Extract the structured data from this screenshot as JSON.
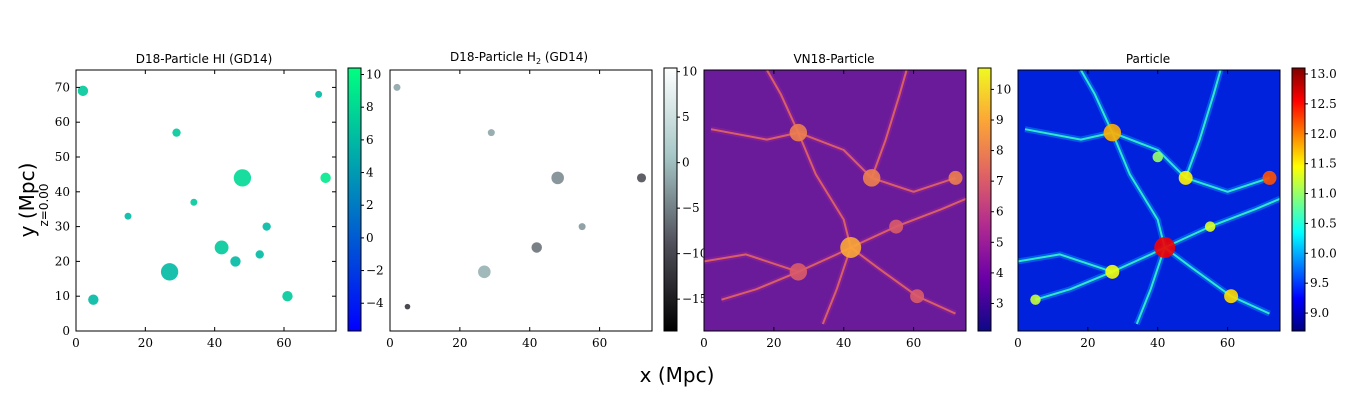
{
  "figure": {
    "xlabel": "x (Mpc)",
    "ylabel": "y (Mpc)",
    "redshift_label": "z=0.00"
  },
  "chart_data": [
    {
      "type": "heatmap",
      "title": "D18-Particle HI (GD14)",
      "title_sub": "",
      "xlim": [
        0,
        75
      ],
      "ylim": [
        0,
        75
      ],
      "xticks": [
        0,
        20,
        40,
        60
      ],
      "yticks": [
        0,
        10,
        20,
        30,
        40,
        50,
        60,
        70
      ],
      "colorbar": {
        "colormap": "winter",
        "range": [
          -5.7,
          10.4
        ],
        "ticks": [
          -4,
          -2,
          0,
          2,
          4,
          6,
          8,
          10
        ],
        "colors": [
          "#0000ff",
          "#0080c0",
          "#00ff80"
        ]
      },
      "background": "#ffffff",
      "features": [
        {
          "x": 48,
          "y": 44,
          "r": 2.5,
          "v": 8
        },
        {
          "x": 42,
          "y": 24,
          "r": 2,
          "v": 7
        },
        {
          "x": 72,
          "y": 44,
          "r": 1.5,
          "v": 9
        },
        {
          "x": 55,
          "y": 30,
          "r": 1.2,
          "v": 6
        },
        {
          "x": 29,
          "y": 57,
          "r": 1.2,
          "v": 7
        },
        {
          "x": 27,
          "y": 17,
          "r": 2.5,
          "v": 6
        },
        {
          "x": 61,
          "y": 10,
          "r": 1.5,
          "v": 7
        },
        {
          "x": 5,
          "y": 9,
          "r": 1.5,
          "v": 6
        },
        {
          "x": 2,
          "y": 69,
          "r": 1.5,
          "v": 7
        },
        {
          "x": 70,
          "y": 68,
          "r": 1,
          "v": 6
        },
        {
          "x": 15,
          "y": 33,
          "r": 1,
          "v": 6
        },
        {
          "x": 34,
          "y": 37,
          "r": 1,
          "v": 7
        },
        {
          "x": 46,
          "y": 20,
          "r": 1.5,
          "v": 6
        },
        {
          "x": 53,
          "y": 22,
          "r": 1.2,
          "v": 6
        }
      ]
    },
    {
      "type": "heatmap",
      "title": "D18-Particle H",
      "title_sub": "2",
      "title_suffix": " (GD14)",
      "xlim": [
        0,
        75
      ],
      "ylim": [
        0,
        75
      ],
      "xticks": [
        0,
        20,
        40,
        60
      ],
      "yticks": [],
      "colorbar": {
        "colormap": "bone",
        "range": [
          -18.5,
          10.4
        ],
        "ticks": [
          -15,
          -10,
          -5,
          0,
          5,
          10
        ],
        "colors": [
          "#000000",
          "#50505a",
          "#a7c7c7",
          "#ffffff"
        ]
      },
      "background": "#ffffff",
      "features": [
        {
          "x": 48,
          "y": 44,
          "r": 1.8,
          "v": -4
        },
        {
          "x": 42,
          "y": 24,
          "r": 1.5,
          "v": -6
        },
        {
          "x": 72,
          "y": 44,
          "r": 1.3,
          "v": -9
        },
        {
          "x": 55,
          "y": 30,
          "r": 1,
          "v": -3
        },
        {
          "x": 29,
          "y": 57,
          "r": 1,
          "v": -2
        },
        {
          "x": 27,
          "y": 17,
          "r": 1.8,
          "v": -1
        },
        {
          "x": 5,
          "y": 7,
          "r": 0.8,
          "v": -12
        },
        {
          "x": 2,
          "y": 70,
          "r": 1,
          "v": -2
        }
      ]
    },
    {
      "type": "heatmap",
      "title": "VN18-Particle",
      "title_sub": "",
      "xlim": [
        0,
        75
      ],
      "ylim": [
        0,
        75
      ],
      "xticks": [
        0,
        20,
        40,
        60
      ],
      "yticks": [],
      "colorbar": {
        "colormap": "plasma",
        "range": [
          2.1,
          10.7
        ],
        "ticks": [
          3,
          4,
          5,
          6,
          7,
          8,
          9,
          10
        ],
        "colors": [
          "#0d0887",
          "#6a00a8",
          "#b12a90",
          "#e16462",
          "#fca636",
          "#f0f921"
        ]
      },
      "background": "#6a1b9a",
      "features": [
        {
          "x": 42,
          "y": 24,
          "r": 3,
          "v": 9
        },
        {
          "x": 48,
          "y": 44,
          "r": 2.5,
          "v": 8
        },
        {
          "x": 27,
          "y": 57,
          "r": 2.5,
          "v": 8
        },
        {
          "x": 72,
          "y": 44,
          "r": 2,
          "v": 8
        },
        {
          "x": 27,
          "y": 17,
          "r": 2.5,
          "v": 7
        },
        {
          "x": 55,
          "y": 30,
          "r": 2,
          "v": 7
        },
        {
          "x": 61,
          "y": 10,
          "r": 2,
          "v": 7
        }
      ],
      "filaments": [
        [
          [
            2,
            58
          ],
          [
            18,
            55
          ],
          [
            27,
            57
          ],
          [
            40,
            52
          ],
          [
            48,
            44
          ],
          [
            60,
            40
          ],
          [
            72,
            44
          ]
        ],
        [
          [
            27,
            57
          ],
          [
            32,
            45
          ],
          [
            40,
            32
          ],
          [
            42,
            24
          ],
          [
            38,
            12
          ],
          [
            34,
            2
          ]
        ],
        [
          [
            0,
            20
          ],
          [
            12,
            22
          ],
          [
            27,
            17
          ],
          [
            38,
            22
          ],
          [
            42,
            24
          ],
          [
            55,
            30
          ],
          [
            68,
            35
          ],
          [
            75,
            38
          ]
        ],
        [
          [
            42,
            24
          ],
          [
            50,
            18
          ],
          [
            61,
            10
          ],
          [
            72,
            5
          ]
        ],
        [
          [
            48,
            44
          ],
          [
            52,
            55
          ],
          [
            56,
            68
          ],
          [
            58,
            75
          ]
        ],
        [
          [
            27,
            57
          ],
          [
            22,
            68
          ],
          [
            18,
            75
          ]
        ],
        [
          [
            5,
            9
          ],
          [
            15,
            12
          ],
          [
            27,
            17
          ]
        ]
      ]
    },
    {
      "type": "heatmap",
      "title": "Particle",
      "title_sub": "",
      "xlim": [
        0,
        75
      ],
      "ylim": [
        0,
        75
      ],
      "xticks": [
        0,
        20,
        40,
        60
      ],
      "yticks": [],
      "colorbar": {
        "colormap": "jet",
        "range": [
          8.7,
          13.1
        ],
        "ticks": [
          9.0,
          9.5,
          10.0,
          10.5,
          11.0,
          11.5,
          12.0,
          12.5,
          13.0
        ],
        "colors": [
          "#00007f",
          "#0000ff",
          "#007fff",
          "#00ffff",
          "#7fff7f",
          "#ffff00",
          "#ff7f00",
          "#ff0000",
          "#7f0000"
        ]
      },
      "background": "#0022dd",
      "features": [
        {
          "x": 42,
          "y": 24,
          "r": 3,
          "v": 12.6
        },
        {
          "x": 48,
          "y": 44,
          "r": 2,
          "v": 11.5
        },
        {
          "x": 27,
          "y": 57,
          "r": 2.5,
          "v": 11.8
        },
        {
          "x": 72,
          "y": 44,
          "r": 2,
          "v": 12.2
        },
        {
          "x": 27,
          "y": 17,
          "r": 2,
          "v": 11.4
        },
        {
          "x": 55,
          "y": 30,
          "r": 1.5,
          "v": 11.3
        },
        {
          "x": 61,
          "y": 10,
          "r": 2,
          "v": 11.6
        },
        {
          "x": 5,
          "y": 9,
          "r": 1.5,
          "v": 11.2
        },
        {
          "x": 40,
          "y": 50,
          "r": 1.5,
          "v": 11
        }
      ],
      "filaments": [
        [
          [
            2,
            58
          ],
          [
            18,
            55
          ],
          [
            27,
            57
          ],
          [
            40,
            52
          ],
          [
            48,
            44
          ],
          [
            60,
            40
          ],
          [
            72,
            44
          ]
        ],
        [
          [
            27,
            57
          ],
          [
            32,
            45
          ],
          [
            40,
            32
          ],
          [
            42,
            24
          ],
          [
            38,
            12
          ],
          [
            34,
            2
          ]
        ],
        [
          [
            0,
            20
          ],
          [
            12,
            22
          ],
          [
            27,
            17
          ],
          [
            38,
            22
          ],
          [
            42,
            24
          ],
          [
            55,
            30
          ],
          [
            68,
            35
          ],
          [
            75,
            38
          ]
        ],
        [
          [
            42,
            24
          ],
          [
            50,
            18
          ],
          [
            61,
            10
          ],
          [
            72,
            5
          ]
        ],
        [
          [
            48,
            44
          ],
          [
            52,
            55
          ],
          [
            56,
            68
          ],
          [
            58,
            75
          ]
        ],
        [
          [
            27,
            57
          ],
          [
            22,
            68
          ],
          [
            18,
            75
          ]
        ],
        [
          [
            5,
            9
          ],
          [
            15,
            12
          ],
          [
            27,
            17
          ]
        ]
      ]
    }
  ]
}
